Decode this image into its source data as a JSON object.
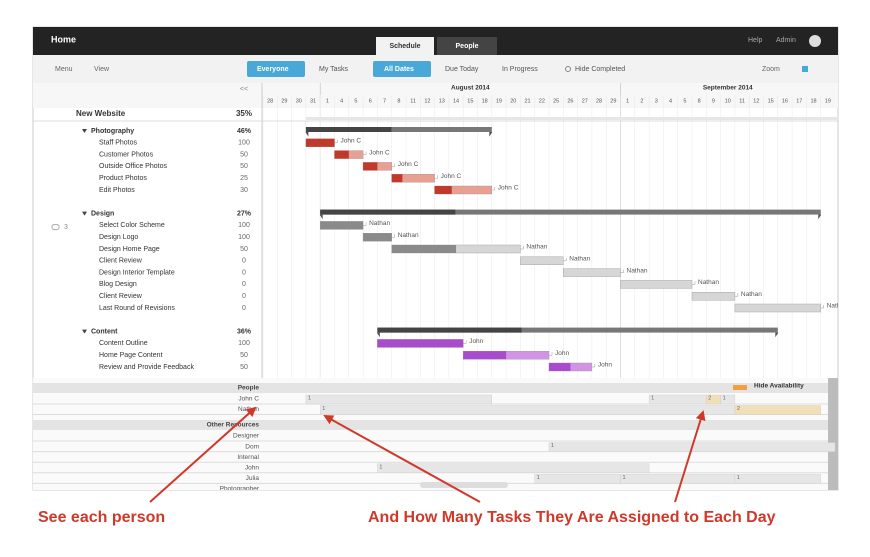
{
  "topbar": {
    "title": "Home",
    "tabs": [
      "Schedule",
      "People"
    ],
    "links": [
      "Help",
      "Admin"
    ]
  },
  "toolbar": {
    "menus": [
      "Menu",
      "View"
    ],
    "everyone": "Everyone",
    "my_tasks": "My Tasks",
    "all_dates": "All Dates",
    "due_today": "Due Today",
    "in_progress": "In Progress",
    "hide_completed": "Hide Completed",
    "zoom": "Zoom"
  },
  "timeline": {
    "collapse": "<<",
    "months": [
      {
        "label": "August 2014",
        "start": 4
      },
      {
        "label": "September 2014",
        "start": 25
      }
    ],
    "days": [
      28,
      29,
      30,
      31,
      1,
      4,
      5,
      6,
      7,
      8,
      11,
      12,
      13,
      14,
      15,
      18,
      19,
      20,
      21,
      22,
      25,
      26,
      27,
      28,
      29,
      1,
      2,
      3,
      4,
      5,
      8,
      9,
      10,
      11,
      12,
      15,
      16,
      17,
      18,
      19
    ]
  },
  "project": {
    "name": "New Website",
    "percent": "35%"
  },
  "groups": [
    {
      "name": "Photography",
      "percent": "46%",
      "start": 3,
      "end": 15,
      "progress": 46,
      "color": "#c0392b",
      "light": "#e8a093",
      "tasks": [
        {
          "name": "Staff Photos",
          "percent": 100,
          "start": 3,
          "end": 4,
          "assignee": "John C"
        },
        {
          "name": "Customer Photos",
          "percent": 50,
          "start": 5,
          "end": 6,
          "assignee": "John C"
        },
        {
          "name": "Outside Office Photos",
          "percent": 50,
          "start": 7,
          "end": 8,
          "assignee": "John C"
        },
        {
          "name": "Product Photos",
          "percent": 25,
          "start": 9,
          "end": 11,
          "assignee": "John C"
        },
        {
          "name": "Edit Photos",
          "percent": 30,
          "start": 12,
          "end": 15,
          "assignee": "John C"
        }
      ]
    },
    {
      "name": "Design",
      "percent": "27%",
      "start": 4,
      "end": 38,
      "progress": 27,
      "color": "#8a8a8a",
      "light": "#d6d6d6",
      "comments": 3,
      "tasks": [
        {
          "name": "Select Color Scheme",
          "percent": 100,
          "start": 4,
          "end": 6,
          "assignee": "Nathan"
        },
        {
          "name": "Design Logo",
          "percent": 100,
          "start": 7,
          "end": 8,
          "assignee": "Nathan"
        },
        {
          "name": "Design Home Page",
          "percent": 50,
          "start": 9,
          "end": 17,
          "assignee": "Nathan"
        },
        {
          "name": "Client Review",
          "percent": 0,
          "start": 18,
          "end": 20,
          "assignee": "Nathan"
        },
        {
          "name": "Design Interior Template",
          "percent": 0,
          "start": 21,
          "end": 24,
          "assignee": "Nathan"
        },
        {
          "name": "Blog Design",
          "percent": 0,
          "start": 25,
          "end": 29,
          "assignee": "Nathan"
        },
        {
          "name": "Client Review",
          "percent": 0,
          "start": 30,
          "end": 32,
          "assignee": "Nathan"
        },
        {
          "name": "Last Round of Revisions",
          "percent": 0,
          "start": 33,
          "end": 38,
          "assignee": "Nathan"
        }
      ]
    },
    {
      "name": "Content",
      "percent": "36%",
      "start": 8,
      "end": 35,
      "progress": 36,
      "color": "#a84bcc",
      "light": "#d392e6",
      "tasks": [
        {
          "name": "Content Outline",
          "percent": 100,
          "start": 8,
          "end": 13,
          "assignee": "John"
        },
        {
          "name": "Home Page Content",
          "percent": 50,
          "start": 14,
          "end": 19,
          "assignee": "John"
        },
        {
          "name": "Review and Provide Feedback",
          "percent": 50,
          "start": 20,
          "end": 22,
          "assignee": "John"
        }
      ]
    }
  ],
  "resources": {
    "people_header": "People",
    "hide_availability": "Hide Availability",
    "other_header": "Other Resources",
    "people": [
      {
        "name": "John C",
        "load": [
          {
            "start": 3,
            "end": 15,
            "count": 1
          },
          {
            "start": 27,
            "end": 30,
            "count": 1
          },
          {
            "start": 31,
            "end": 31,
            "count": 2
          },
          {
            "start": 32,
            "end": 32,
            "count": 1
          }
        ]
      },
      {
        "name": "Nathan",
        "load": [
          {
            "start": 4,
            "end": 32,
            "count": 1
          },
          {
            "start": 33,
            "end": 38,
            "count": 2
          }
        ]
      }
    ],
    "other": [
      {
        "name": "Designer",
        "load": []
      },
      {
        "name": "Dom",
        "load": [
          {
            "start": 20,
            "end": 39,
            "count": 1
          }
        ]
      },
      {
        "name": "Internal",
        "load": []
      },
      {
        "name": "John",
        "load": [
          {
            "start": 8,
            "end": 26,
            "count": 1
          }
        ]
      },
      {
        "name": "Julia",
        "load": [
          {
            "start": 19,
            "end": 24,
            "count": 1
          },
          {
            "start": 25,
            "end": 32,
            "count": 1
          },
          {
            "start": 33,
            "end": 38,
            "count": 1
          }
        ]
      },
      {
        "name": "Photographer",
        "load": []
      }
    ]
  },
  "annotations": [
    "See each person",
    "And How Many Tasks They Are Assigned to Each Day"
  ]
}
